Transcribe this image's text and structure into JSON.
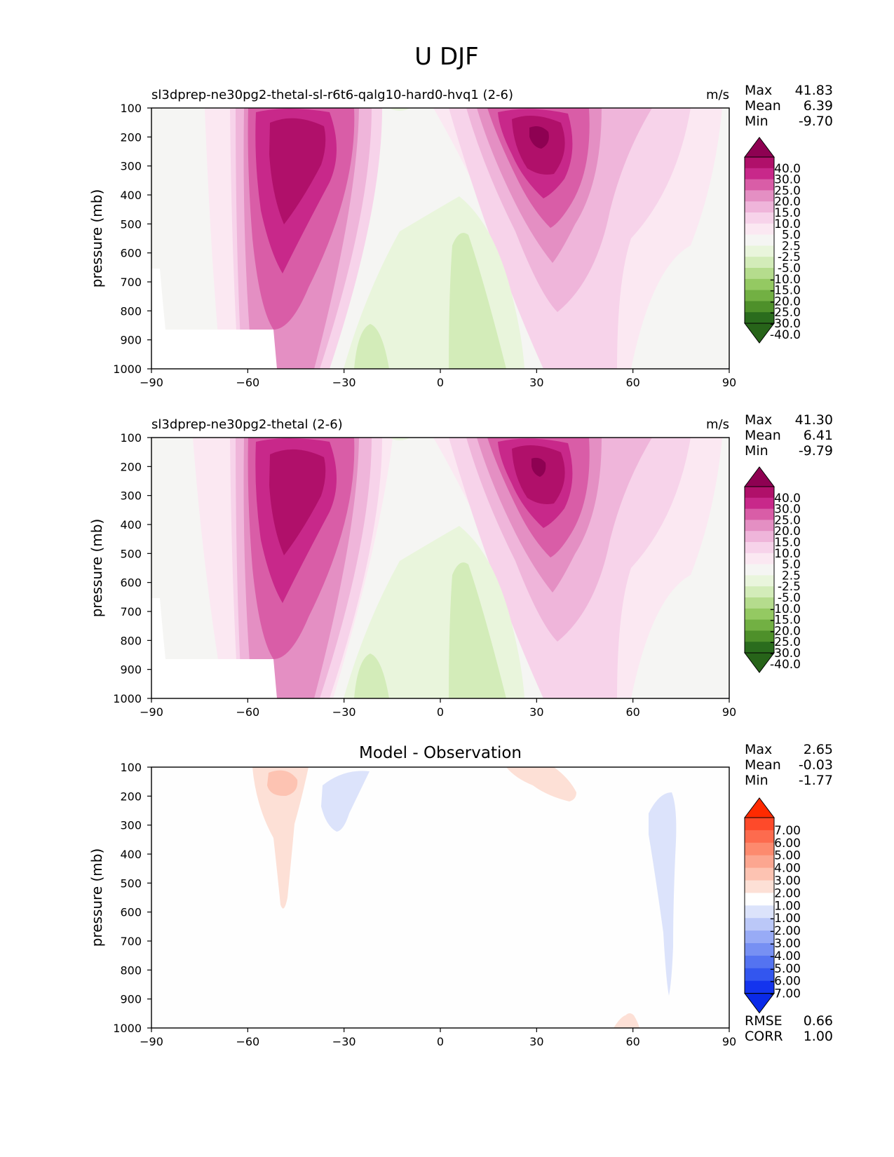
{
  "figure_title": "U DJF",
  "chart_data": [
    {
      "type": "heatmap",
      "panel": "test",
      "title_left": "sl3dprep-ne30pg2-thetal-sl-r6t6-qalg10-hard0-hvq1 (2-6)",
      "title_right": "m/s",
      "title_center": "",
      "ylabel": "pressure (mb)",
      "xlabel": "",
      "xlim": [
        -90,
        90
      ],
      "ylim": [
        1000,
        100
      ],
      "x_ticks": [
        "−90",
        "−60",
        "−30",
        "0",
        "30",
        "60",
        "90"
      ],
      "y_ticks": [
        "100",
        "200",
        "300",
        "400",
        "500",
        "600",
        "700",
        "800",
        "900",
        "1000"
      ],
      "stats": [
        {
          "label": "Max",
          "value": "41.83"
        },
        {
          "label": "Mean",
          "value": "6.39"
        },
        {
          "label": "Min",
          "value": "-9.70"
        }
      ],
      "colorbar_ticks": [
        "40.0",
        "30.0",
        "25.0",
        "20.0",
        "15.0",
        "10.0",
        "5.0",
        "2.5",
        "-2.5",
        "-5.0",
        "-10.0",
        "-15.0",
        "-20.0",
        "-25.0",
        "-30.0",
        "-40.0"
      ],
      "colorbar_colors": [
        "#8e0152",
        "#b0106a",
        "#c8288a",
        "#d95da7",
        "#e48fc3",
        "#efb5da",
        "#f7d3ea",
        "#fbe8f2",
        "#f5f5f3",
        "#e9f5dc",
        "#d3ecb9",
        "#b5dc8d",
        "#94c962",
        "#72b043",
        "#4e902a",
        "#2a6c1d",
        "#276419"
      ],
      "jets": [
        {
          "lat": -47,
          "p": 265,
          "u": 33
        },
        {
          "lat": 31,
          "p": 220,
          "u": 41.8
        }
      ],
      "easterlies": [
        {
          "lat": 8,
          "p": 900,
          "u": -8
        },
        {
          "lat": -20,
          "p": 930,
          "u": -6
        }
      ]
    },
    {
      "type": "heatmap",
      "panel": "reference",
      "title_left": "sl3dprep-ne30pg2-thetal (2-6)",
      "title_right": "m/s",
      "title_center": "",
      "ylabel": "pressure (mb)",
      "xlabel": "",
      "xlim": [
        -90,
        90
      ],
      "ylim": [
        1000,
        100
      ],
      "x_ticks": [
        "−90",
        "−60",
        "−30",
        "0",
        "30",
        "60",
        "90"
      ],
      "y_ticks": [
        "100",
        "200",
        "300",
        "400",
        "500",
        "600",
        "700",
        "800",
        "900",
        "1000"
      ],
      "stats": [
        {
          "label": "Max",
          "value": "41.30"
        },
        {
          "label": "Mean",
          "value": "6.41"
        },
        {
          "label": "Min",
          "value": "-9.79"
        }
      ],
      "colorbar_ticks": [
        "40.0",
        "30.0",
        "25.0",
        "20.0",
        "15.0",
        "10.0",
        "5.0",
        "2.5",
        "-2.5",
        "-5.0",
        "-10.0",
        "-15.0",
        "-20.0",
        "-25.0",
        "-30.0",
        "-40.0"
      ],
      "colorbar_colors": [
        "#8e0152",
        "#b0106a",
        "#c8288a",
        "#d95da7",
        "#e48fc3",
        "#efb5da",
        "#f7d3ea",
        "#fbe8f2",
        "#f5f5f3",
        "#e9f5dc",
        "#d3ecb9",
        "#b5dc8d",
        "#94c962",
        "#72b043",
        "#4e902a",
        "#2a6c1d",
        "#276419"
      ],
      "jets": [
        {
          "lat": -47,
          "p": 265,
          "u": 33
        },
        {
          "lat": 31,
          "p": 220,
          "u": 41.3
        }
      ],
      "easterlies": [
        {
          "lat": 8,
          "p": 900,
          "u": -8
        },
        {
          "lat": -20,
          "p": 930,
          "u": -6
        }
      ]
    },
    {
      "type": "heatmap",
      "panel": "difference",
      "title_left": "",
      "title_right": "",
      "title_center": "Model - Observation",
      "ylabel": "pressure (mb)",
      "xlabel": "",
      "xlim": [
        -90,
        90
      ],
      "ylim": [
        1000,
        100
      ],
      "x_ticks": [
        "−90",
        "−60",
        "−30",
        "0",
        "30",
        "60",
        "90"
      ],
      "y_ticks": [
        "100",
        "200",
        "300",
        "400",
        "500",
        "600",
        "700",
        "800",
        "900",
        "1000"
      ],
      "stats": [
        {
          "label": "Max",
          "value": "2.65"
        },
        {
          "label": "Mean",
          "value": "-0.03"
        },
        {
          "label": "Min",
          "value": "-1.77"
        }
      ],
      "stats_bottom": [
        {
          "label": "RMSE",
          "value": "0.66"
        },
        {
          "label": "CORR",
          "value": "1.00"
        }
      ],
      "colorbar_ticks": [
        "7.00",
        "6.00",
        "5.00",
        "4.00",
        "3.00",
        "2.00",
        "1.00",
        "-1.00",
        "-2.00",
        "-3.00",
        "-4.00",
        "-5.00",
        "-6.00",
        "-7.00"
      ],
      "colorbar_colors": [
        "#ff2a00",
        "#fe4a2a",
        "#fd6b4e",
        "#fd8a6e",
        "#fca690",
        "#fdc3b2",
        "#fde0d6",
        "#ffffff",
        "#dce3fb",
        "#bbc8f8",
        "#98abf6",
        "#7790f3",
        "#5473f1",
        "#3356ef",
        "#1434ee",
        "#0a2ae8"
      ],
      "anomalies": [
        {
          "lat": -48,
          "p": 150,
          "du": 2.65
        },
        {
          "lat": -30,
          "p": 200,
          "du": -1.2
        },
        {
          "lat": 30,
          "p": 140,
          "du": 1.2
        },
        {
          "lat": 71,
          "p": 500,
          "du": -1.77
        },
        {
          "lat": 59,
          "p": 990,
          "du": 1.0
        }
      ]
    }
  ]
}
